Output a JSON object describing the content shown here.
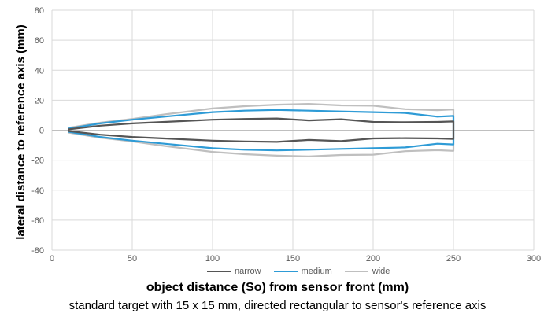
{
  "chart_data": {
    "type": "line",
    "xlabel": "object distance (So) from sensor front (mm)",
    "ylabel": "lateral distance to reference axis (mm)",
    "caption": "standard target with 15 x 15 mm, directed rectangular to sensor's reference axis",
    "xlim": [
      0,
      300
    ],
    "ylim": [
      -80,
      80
    ],
    "x_ticks": [
      "0",
      "50",
      "100",
      "150",
      "200",
      "250",
      "300"
    ],
    "y_ticks": [
      "80",
      "60",
      "40",
      "20",
      "0",
      "-20",
      "-40",
      "-60",
      "-80"
    ],
    "grid": true,
    "legend_position": "bottom",
    "series": [
      {
        "name": "narrow",
        "color": "#555555",
        "x": [
          10,
          30,
          50,
          70,
          100,
          120,
          140,
          160,
          180,
          200,
          220,
          240,
          250,
          250,
          240,
          220,
          200,
          180,
          160,
          140,
          120,
          100,
          70,
          50,
          30,
          10
        ],
        "y": [
          0.5,
          3,
          4.5,
          5.5,
          7,
          7.5,
          7.8,
          6.5,
          7.3,
          5.5,
          5.3,
          5.5,
          5.8,
          -5.8,
          -5.5,
          -5.3,
          -5.5,
          -7.3,
          -6.5,
          -7.8,
          -7.5,
          -7,
          -5.5,
          -4.5,
          -3,
          -0.5
        ]
      },
      {
        "name": "medium",
        "color": "#2e9bd6",
        "x": [
          10,
          30,
          50,
          70,
          100,
          120,
          140,
          160,
          180,
          200,
          220,
          240,
          250,
          250,
          240,
          220,
          200,
          180,
          160,
          140,
          120,
          100,
          70,
          50,
          30,
          10
        ],
        "y": [
          1,
          4.5,
          7,
          9,
          12,
          13,
          13.5,
          13,
          12.5,
          12,
          11.5,
          9,
          9.5,
          -9.5,
          -9,
          -11.5,
          -12,
          -12.5,
          -13,
          -13.5,
          -13,
          -12,
          -9,
          -7,
          -4.5,
          -1
        ]
      },
      {
        "name": "wide",
        "color": "#bfbfbf",
        "x": [
          10,
          30,
          50,
          70,
          100,
          120,
          140,
          160,
          180,
          200,
          220,
          240,
          250,
          250,
          240,
          220,
          200,
          180,
          160,
          140,
          120,
          100,
          70,
          50,
          30,
          10
        ],
        "y": [
          1.5,
          5,
          7.5,
          10.5,
          14.5,
          16,
          17,
          17.5,
          16.5,
          16.3,
          14,
          13.3,
          13.8,
          -13.8,
          -13.3,
          -14,
          -16.3,
          -16.5,
          -17.5,
          -17,
          -16,
          -14.5,
          -10.5,
          -7.5,
          -5,
          -1.5
        ]
      }
    ]
  }
}
